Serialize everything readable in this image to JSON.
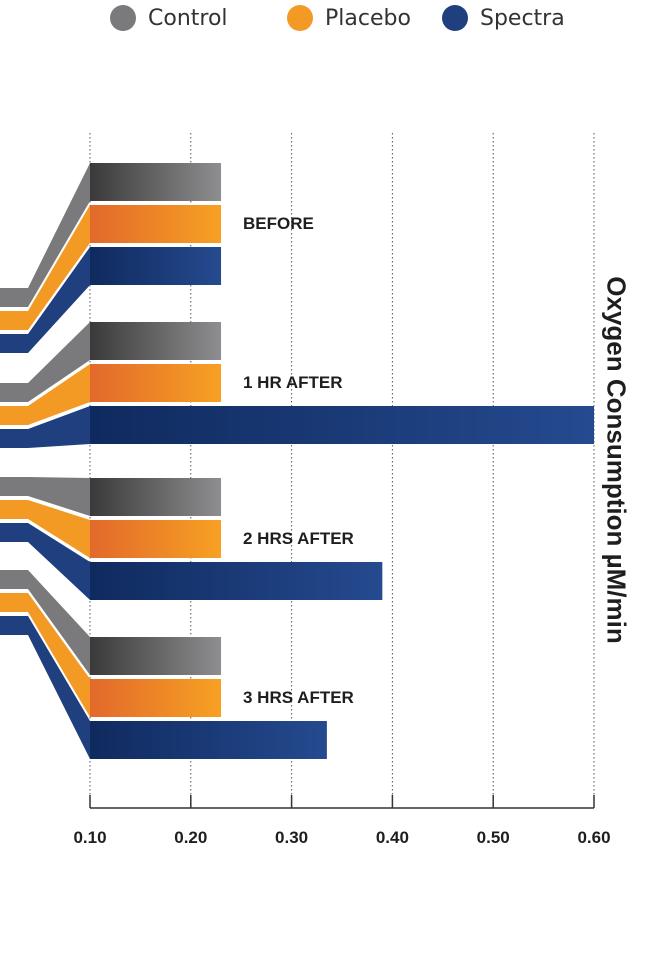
{
  "chart_data": {
    "type": "bar",
    "orientation": "horizontal",
    "ylabel": "Oxygen Consumption µM/min",
    "xlim": [
      0.1,
      0.6
    ],
    "ticks": [
      "0.10",
      "0.20",
      "0.30",
      "0.40",
      "0.50",
      "0.60"
    ],
    "categories": [
      "BEFORE",
      "1 HR AFTER",
      "2 HRS AFTER",
      "3 HRS AFTER"
    ],
    "series": [
      {
        "name": "Control",
        "values": [
          0.23,
          0.23,
          0.23,
          0.23
        ],
        "color": "#7a7a7c"
      },
      {
        "name": "Placebo",
        "values": [
          0.23,
          0.23,
          0.23,
          0.23
        ],
        "color": "#f39a25"
      },
      {
        "name": "Spectra",
        "values": [
          0.23,
          0.6,
          0.39,
          0.335
        ],
        "color": "#1f3f7e"
      }
    ]
  }
}
